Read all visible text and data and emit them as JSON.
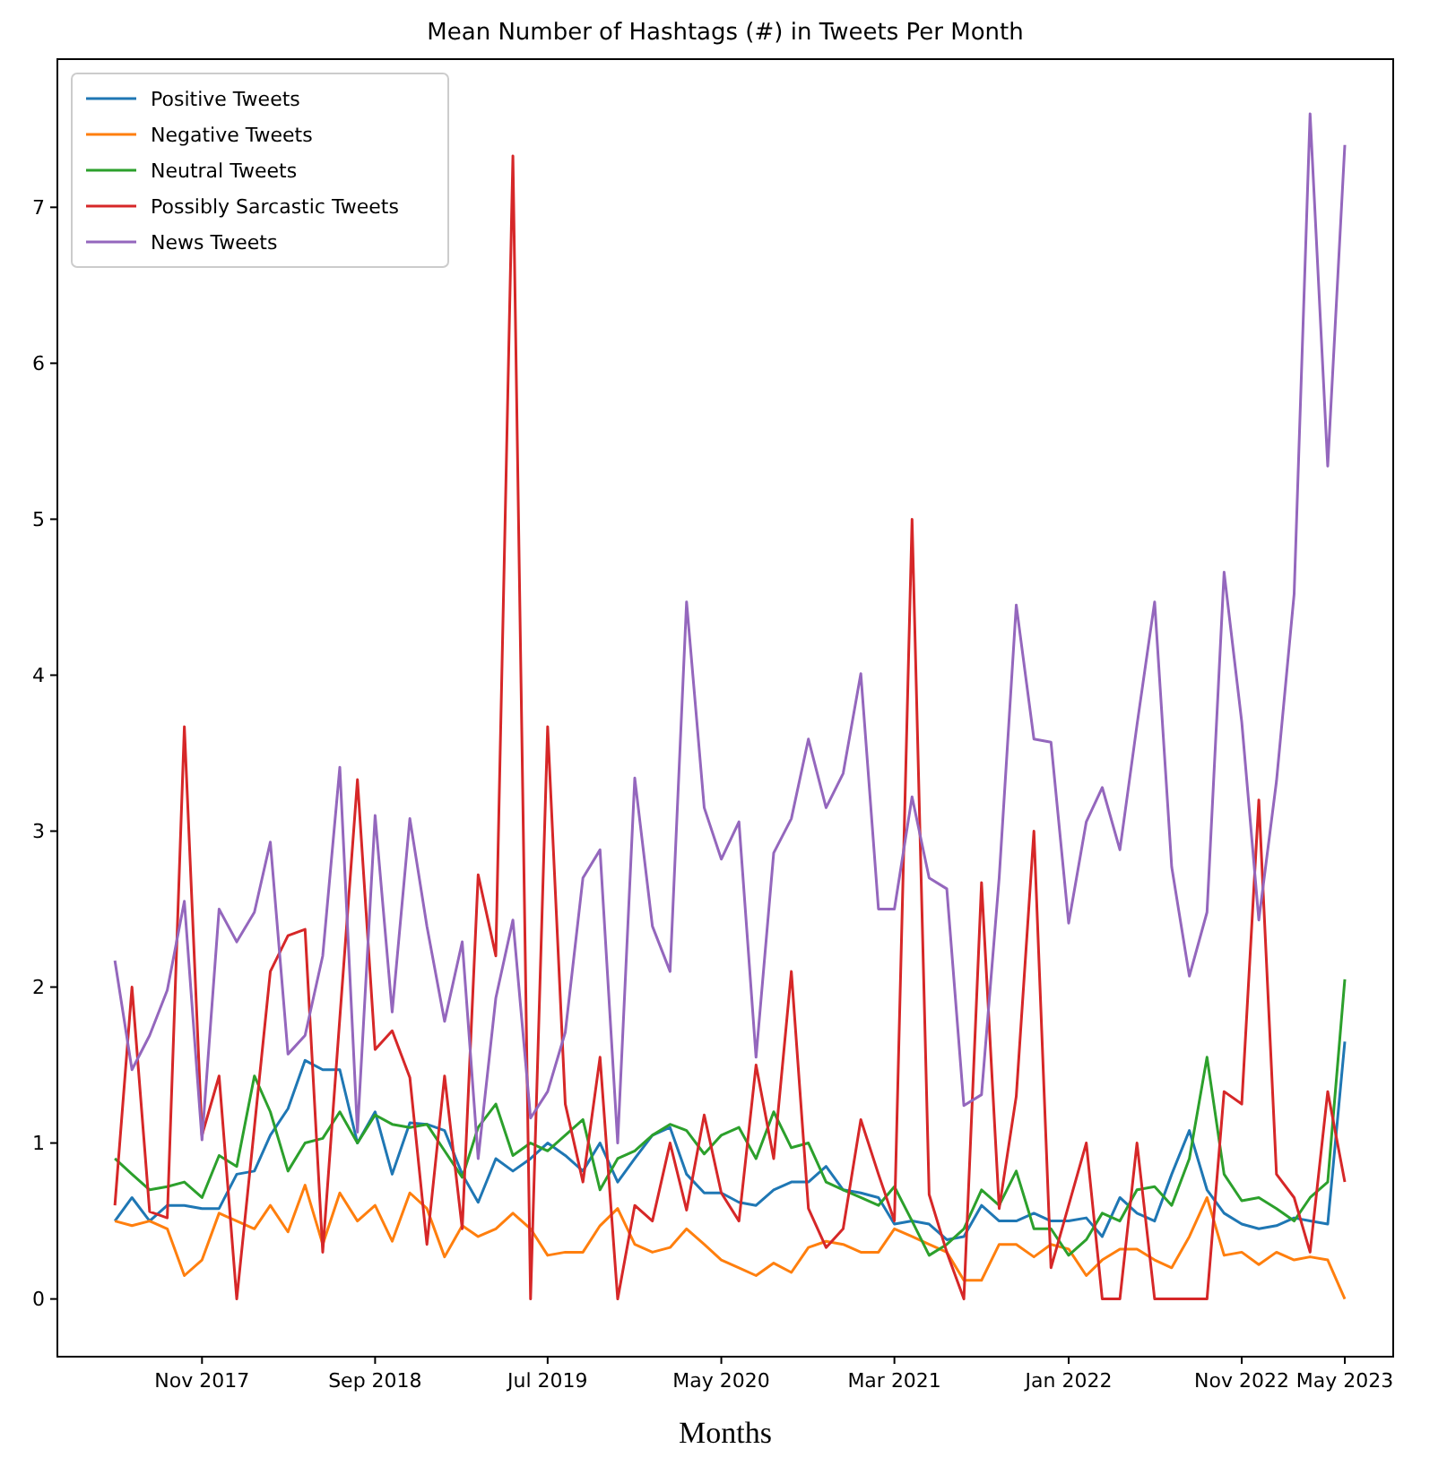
{
  "chart_data": {
    "type": "line",
    "title": "Mean Number of Hashtags (#) in Tweets Per Month",
    "xlabel": "Months",
    "x": [
      "2017-06",
      "2017-07",
      "2017-08",
      "2017-09",
      "2017-10",
      "2017-11",
      "2017-12",
      "2018-01",
      "2018-02",
      "2018-03",
      "2018-04",
      "2018-05",
      "2018-06",
      "2018-07",
      "2018-08",
      "2018-09",
      "2018-10",
      "2018-11",
      "2018-12",
      "2019-01",
      "2019-02",
      "2019-03",
      "2019-04",
      "2019-05",
      "2019-06",
      "2019-07",
      "2019-08",
      "2019-09",
      "2019-10",
      "2019-11",
      "2019-12",
      "2020-01",
      "2020-02",
      "2020-03",
      "2020-04",
      "2020-05",
      "2020-06",
      "2020-07",
      "2020-08",
      "2020-09",
      "2020-10",
      "2020-11",
      "2020-12",
      "2021-01",
      "2021-02",
      "2021-03",
      "2021-04",
      "2021-05",
      "2021-06",
      "2021-07",
      "2021-08",
      "2021-09",
      "2021-10",
      "2021-11",
      "2021-12",
      "2022-01",
      "2022-02",
      "2022-03",
      "2022-04",
      "2022-05",
      "2022-06",
      "2022-07",
      "2022-08",
      "2022-09",
      "2022-10",
      "2022-11",
      "2022-12",
      "2023-01",
      "2023-02",
      "2023-03",
      "2023-04",
      "2023-05"
    ],
    "xlim": [
      "2017-02-20",
      "2023-07-25"
    ],
    "xticks": [
      {
        "value": "2017-11",
        "label": "Nov 2017"
      },
      {
        "value": "2018-09",
        "label": "Sep 2018"
      },
      {
        "value": "2019-07",
        "label": "Jul 2019"
      },
      {
        "value": "2020-05",
        "label": "May 2020"
      },
      {
        "value": "2021-03",
        "label": "Mar 2021"
      },
      {
        "value": "2022-01",
        "label": "Jan 2022"
      },
      {
        "value": "2022-11",
        "label": "Nov 2022"
      },
      {
        "value": "2023-05",
        "label": "May 2023"
      }
    ],
    "ylim": [
      -0.37,
      7.95
    ],
    "yticks": [
      0,
      1,
      2,
      3,
      4,
      5,
      6,
      7
    ],
    "grid": false,
    "legend": "top left",
    "line_style": "solid",
    "marker": "none",
    "series": [
      {
        "name": "Positive Tweets",
        "color": "#1f77b4",
        "values": [
          0.5,
          0.65,
          0.5,
          0.6,
          0.6,
          0.58,
          0.58,
          0.8,
          0.82,
          1.05,
          1.22,
          1.53,
          1.47,
          1.47,
          1.0,
          1.2,
          0.8,
          1.13,
          1.12,
          1.08,
          0.8,
          0.62,
          0.9,
          0.82,
          0.9,
          1.0,
          0.92,
          0.82,
          1.0,
          0.75,
          0.9,
          1.05,
          1.1,
          0.8,
          0.68,
          0.68,
          0.62,
          0.6,
          0.7,
          0.75,
          0.75,
          0.85,
          0.7,
          0.68,
          0.65,
          0.48,
          0.5,
          0.48,
          0.38,
          0.4,
          0.6,
          0.5,
          0.5,
          0.55,
          0.5,
          0.5,
          0.52,
          0.4,
          0.65,
          0.55,
          0.5,
          0.8,
          1.08,
          0.7,
          0.55,
          0.48,
          0.45,
          0.47,
          0.52,
          0.5,
          0.48,
          1.65
        ]
      },
      {
        "name": "Negative Tweets",
        "color": "#ff7f0e",
        "values": [
          0.5,
          0.47,
          0.5,
          0.45,
          0.15,
          0.25,
          0.55,
          0.5,
          0.45,
          0.6,
          0.43,
          0.73,
          0.35,
          0.68,
          0.5,
          0.6,
          0.37,
          0.68,
          0.58,
          0.27,
          0.47,
          0.4,
          0.45,
          0.55,
          0.45,
          0.28,
          0.3,
          0.3,
          0.47,
          0.58,
          0.35,
          0.3,
          0.33,
          0.45,
          0.35,
          0.25,
          0.2,
          0.15,
          0.23,
          0.17,
          0.33,
          0.37,
          0.35,
          0.3,
          0.3,
          0.45,
          0.4,
          0.35,
          0.3,
          0.12,
          0.12,
          0.35,
          0.35,
          0.27,
          0.35,
          0.32,
          0.15,
          0.25,
          0.32,
          0.32,
          0.25,
          0.2,
          0.4,
          0.65,
          0.28,
          0.3,
          0.22,
          0.3,
          0.25,
          0.27,
          0.25,
          0.0
        ]
      },
      {
        "name": "Neutral Tweets",
        "color": "#2ca02c",
        "values": [
          0.9,
          0.8,
          0.7,
          0.72,
          0.75,
          0.65,
          0.92,
          0.85,
          1.43,
          1.2,
          0.82,
          1.0,
          1.03,
          1.2,
          1.0,
          1.18,
          1.12,
          1.1,
          1.12,
          0.95,
          0.78,
          1.1,
          1.25,
          0.92,
          1.0,
          0.95,
          1.05,
          1.15,
          0.7,
          0.9,
          0.95,
          1.05,
          1.12,
          1.08,
          0.93,
          1.05,
          1.1,
          0.9,
          1.2,
          0.97,
          1.0,
          0.75,
          0.7,
          0.65,
          0.6,
          0.72,
          0.5,
          0.28,
          0.35,
          0.45,
          0.7,
          0.6,
          0.82,
          0.45,
          0.45,
          0.28,
          0.38,
          0.55,
          0.5,
          0.7,
          0.72,
          0.6,
          0.9,
          1.55,
          0.8,
          0.63,
          0.65,
          0.58,
          0.5,
          0.65,
          0.75,
          2.05
        ]
      },
      {
        "name": "Possibly Sarcastic Tweets",
        "color": "#d62728",
        "values": [
          0.6,
          2.0,
          0.56,
          0.52,
          3.67,
          1.05,
          1.43,
          0.0,
          1.1,
          2.1,
          2.33,
          2.37,
          0.3,
          1.8,
          3.33,
          1.6,
          1.72,
          1.42,
          0.35,
          1.43,
          0.45,
          2.72,
          2.2,
          7.33,
          0.0,
          3.67,
          1.25,
          0.75,
          1.55,
          0.0,
          0.6,
          0.5,
          1.0,
          0.57,
          1.18,
          0.68,
          0.5,
          1.5,
          0.9,
          2.1,
          0.58,
          0.33,
          0.45,
          1.15,
          0.8,
          0.5,
          5.0,
          0.67,
          0.3,
          0.0,
          2.67,
          0.58,
          1.3,
          3.0,
          0.2,
          0.6,
          1.0,
          0.0,
          0.0,
          1.0,
          0.0,
          0.0,
          0.0,
          0.0,
          1.33,
          1.25,
          3.2,
          0.8,
          0.65,
          0.3,
          1.33,
          0.75
        ]
      },
      {
        "name": "News Tweets",
        "color": "#9467bd",
        "values": [
          2.17,
          1.47,
          1.69,
          1.98,
          2.55,
          1.02,
          2.5,
          2.29,
          2.48,
          2.93,
          1.57,
          1.69,
          2.2,
          3.41,
          1.07,
          3.1,
          1.84,
          3.08,
          2.39,
          1.78,
          2.29,
          0.9,
          1.93,
          2.43,
          1.16,
          1.33,
          1.71,
          2.7,
          2.88,
          1.0,
          3.34,
          2.39,
          2.1,
          4.47,
          3.15,
          2.82,
          3.06,
          1.55,
          2.86,
          3.08,
          3.59,
          3.15,
          3.37,
          4.01,
          2.5,
          2.5,
          3.22,
          2.7,
          2.63,
          1.24,
          1.31,
          2.7,
          4.45,
          3.59,
          3.57,
          2.41,
          3.06,
          3.28,
          2.88,
          3.68,
          4.47,
          2.77,
          2.07,
          2.48,
          4.66,
          3.7,
          2.43,
          3.32,
          4.52,
          7.6,
          5.34,
          7.4
        ]
      }
    ]
  }
}
